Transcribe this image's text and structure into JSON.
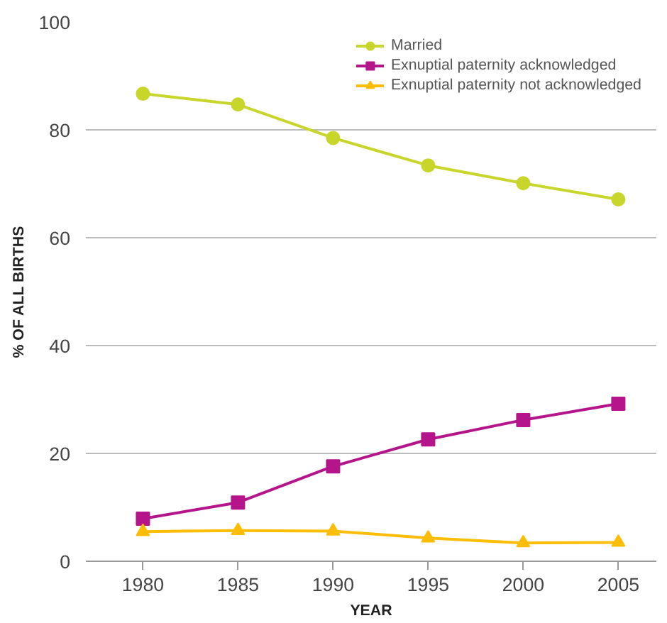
{
  "chart_data": {
    "type": "line",
    "xlabel": "YEAR",
    "ylabel": "% OF ALL BIRTHS",
    "x": [
      1980,
      1985,
      1990,
      1995,
      2000,
      2005
    ],
    "series": [
      {
        "name": "Married",
        "color": "#c8d62b",
        "marker": "circle",
        "values": [
          86.7,
          84.7,
          78.5,
          73.4,
          70.1,
          67.1
        ]
      },
      {
        "name": "Exnuptial paternity acknowledged",
        "color": "#b5158b",
        "marker": "square",
        "values": [
          7.9,
          10.9,
          17.6,
          22.6,
          26.2,
          29.2
        ]
      },
      {
        "name": "Exnuptial paternity not acknowledged",
        "color": "#fbbd05",
        "marker": "triangle",
        "values": [
          5.5,
          5.7,
          5.6,
          4.3,
          3.4,
          3.5
        ]
      }
    ],
    "xlim": [
      1977,
      2007
    ],
    "xticks": [
      1980,
      1985,
      1990,
      1995,
      2000,
      2005
    ],
    "ylim": [
      0,
      100
    ],
    "yticks": [
      0,
      20,
      40,
      60,
      80,
      100
    ],
    "grid": "y",
    "legend": "top right",
    "line_style": "solid"
  }
}
